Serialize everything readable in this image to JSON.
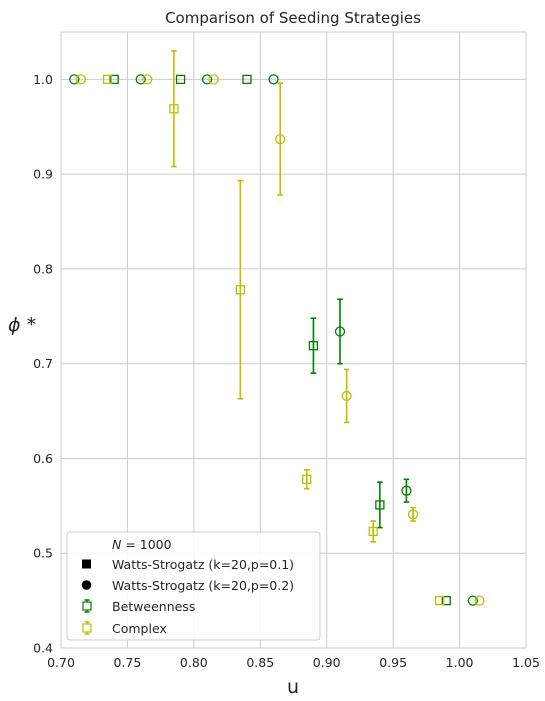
{
  "chart_data": {
    "type": "scatter",
    "title": "Comparison of Seeding Strategies",
    "xlabel": "u",
    "ylabel": "ϕ *",
    "xlim": [
      0.7,
      1.05
    ],
    "ylim": [
      0.4,
      1.05
    ],
    "xticks": [
      "0.70",
      "0.75",
      "0.80",
      "0.85",
      "0.90",
      "0.95",
      "1.00",
      "1.05"
    ],
    "yticks": [
      "0.4",
      "0.5",
      "0.6",
      "0.7",
      "0.8",
      "0.9",
      "1.0"
    ],
    "grid": true,
    "legend": {
      "placement": "bottom-left",
      "title": "N = 1000",
      "title_prefix": "N",
      "title_suffix": " = 1000",
      "entries": [
        {
          "label": "Watts-Strogatz (k=20,p=0.1)",
          "marker": "square-filled",
          "color": "#000000"
        },
        {
          "label": "Watts-Strogatz (k=20,p=0.2)",
          "marker": "circle-filled",
          "color": "#000000"
        },
        {
          "label": "Betweenness",
          "marker": "square-open-errorbar",
          "color": "#008000"
        },
        {
          "label": "Complex",
          "marker": "square-open-errorbar",
          "color": "#bfbf00"
        }
      ]
    },
    "colors": {
      "Betweenness": "#008000",
      "Complex": "#bfbf00"
    },
    "series": [
      {
        "name": "Betweenness",
        "network": "Watts-Strogatz (k=20,p=0.1)",
        "marker": "square",
        "color": "#008000",
        "points": [
          {
            "x": 0.74,
            "y": 1.0,
            "err": 0
          },
          {
            "x": 0.79,
            "y": 1.0,
            "err": 0
          },
          {
            "x": 0.84,
            "y": 1.0,
            "err": 0
          },
          {
            "x": 0.89,
            "y": 0.719,
            "err": 0.029
          },
          {
            "x": 0.94,
            "y": 0.551,
            "err": 0.024
          },
          {
            "x": 0.99,
            "y": 0.45,
            "err": 0
          }
        ]
      },
      {
        "name": "Betweenness",
        "network": "Watts-Strogatz (k=20,p=0.2)",
        "marker": "circle",
        "color": "#008000",
        "points": [
          {
            "x": 0.71,
            "y": 1.0,
            "err": 0
          },
          {
            "x": 0.76,
            "y": 1.0,
            "err": 0
          },
          {
            "x": 0.81,
            "y": 1.0,
            "err": 0
          },
          {
            "x": 0.86,
            "y": 1.0,
            "err": 0
          },
          {
            "x": 0.91,
            "y": 0.734,
            "err": 0.034
          },
          {
            "x": 0.96,
            "y": 0.566,
            "err": 0.012
          },
          {
            "x": 1.01,
            "y": 0.45,
            "err": 0
          }
        ]
      },
      {
        "name": "Complex",
        "network": "Watts-Strogatz (k=20,p=0.1)",
        "marker": "square",
        "color": "#bfbf00",
        "points": [
          {
            "x": 0.735,
            "y": 1.0,
            "err": 0
          },
          {
            "x": 0.785,
            "y": 0.969,
            "err": 0.061
          },
          {
            "x": 0.835,
            "y": 0.778,
            "err": 0.115
          },
          {
            "x": 0.885,
            "y": 0.578,
            "err": 0.01
          },
          {
            "x": 0.935,
            "y": 0.523,
            "err": 0.011
          },
          {
            "x": 0.985,
            "y": 0.45,
            "err": 0
          }
        ]
      },
      {
        "name": "Complex",
        "network": "Watts-Strogatz (k=20,p=0.2)",
        "marker": "circle",
        "color": "#bfbf00",
        "points": [
          {
            "x": 0.715,
            "y": 1.0,
            "err": 0
          },
          {
            "x": 0.765,
            "y": 1.0,
            "err": 0
          },
          {
            "x": 0.815,
            "y": 1.0,
            "err": 0
          },
          {
            "x": 0.865,
            "y": 0.937,
            "err": 0.059
          },
          {
            "x": 0.915,
            "y": 0.666,
            "err": 0.028
          },
          {
            "x": 0.965,
            "y": 0.541,
            "err": 0.007
          },
          {
            "x": 1.015,
            "y": 0.45,
            "err": 0
          }
        ]
      }
    ]
  }
}
